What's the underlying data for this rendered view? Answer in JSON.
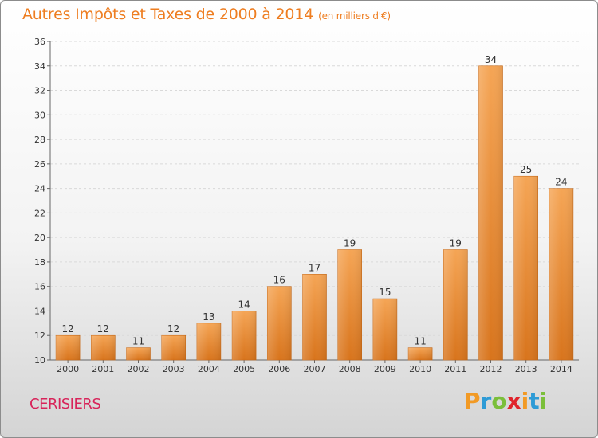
{
  "title": "Autres Impôts et Taxes de 2000 à 2014",
  "subtitle": "(en milliers d'€)",
  "commune": "CERISIERS",
  "logo": {
    "letters": [
      "P",
      "r",
      "o",
      "x",
      "i",
      "t",
      "i"
    ],
    "colors": [
      "#f29a25",
      "#2e9bd6",
      "#7bbf3a",
      "#e0242c",
      "#f29a25",
      "#2e9bd6",
      "#7bbf3a"
    ]
  },
  "chart_data": {
    "type": "bar",
    "categories": [
      "2000",
      "2001",
      "2002",
      "2003",
      "2004",
      "2005",
      "2006",
      "2007",
      "2008",
      "2009",
      "2010",
      "2011",
      "2012",
      "2013",
      "2014"
    ],
    "values": [
      12,
      12,
      11,
      12,
      13,
      14,
      16,
      17,
      19,
      15,
      11,
      19,
      34,
      25,
      24
    ],
    "title": "Autres Impôts et Taxes de 2000 à 2014",
    "subtitle": "(en milliers d'€)",
    "ylim": [
      10,
      36
    ],
    "yticks": [
      10,
      12,
      14,
      16,
      18,
      20,
      22,
      24,
      26,
      28,
      30,
      32,
      34,
      36
    ],
    "grid": true,
    "bar_color": "#ee8a2c"
  }
}
